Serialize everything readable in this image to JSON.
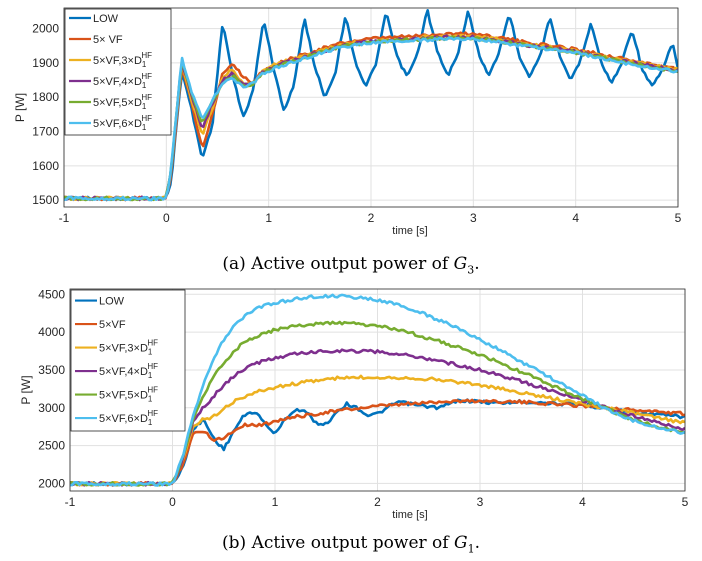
{
  "figure_captions": [
    {
      "prefix": "(a) Active output power of ",
      "math": "G",
      "sub": "3",
      "suffix": "."
    },
    {
      "prefix": "(b) Active output power of ",
      "math": "G",
      "sub": "1",
      "suffix": "."
    }
  ],
  "chart_data": [
    {
      "type": "line",
      "xlabel": "time [s]",
      "ylabel": "P [W]",
      "xlim": [
        -1,
        5
      ],
      "ylim": [
        1480,
        2060
      ],
      "xticks": [
        -1,
        0,
        1,
        2,
        3,
        4,
        5
      ],
      "yticks": [
        1500,
        1600,
        1700,
        1800,
        1900,
        2000
      ],
      "grid": true,
      "legend_position": "top-left",
      "series": [
        {
          "name": "LOW",
          "label_base": "LOW",
          "label_sup": "",
          "color": "#0072BD",
          "x": [
            -1,
            0,
            0.05,
            0.15,
            0.25,
            0.35,
            0.45,
            0.55,
            0.65,
            0.75,
            0.85,
            0.95,
            1.05,
            1.15,
            1.25,
            1.35,
            1.45,
            1.55,
            1.65,
            1.75,
            1.85,
            1.95,
            2.05,
            2.15,
            2.25,
            2.35,
            2.45,
            2.55,
            2.65,
            2.75,
            2.85,
            2.95,
            3.05,
            3.15,
            3.25,
            3.35,
            3.45,
            3.55,
            3.65,
            3.75,
            3.85,
            3.95,
            4.05,
            4.15,
            4.25,
            4.35,
            4.45,
            4.55,
            4.65,
            4.75,
            4.85,
            4.95,
            5
          ],
          "y": [
            1505,
            1505,
            1560,
            1880,
            1760,
            1620,
            1720,
            2020,
            1860,
            1740,
            1820,
            2030,
            1880,
            1760,
            1840,
            2030,
            1890,
            1800,
            1870,
            2040,
            1900,
            1830,
            1900,
            2050,
            1920,
            1860,
            1920,
            2055,
            1930,
            1860,
            1930,
            2050,
            1930,
            1860,
            1930,
            2045,
            1920,
            1860,
            1920,
            2035,
            1910,
            1850,
            1910,
            2020,
            1900,
            1840,
            1900,
            2000,
            1880,
            1830,
            1880,
            1960,
            1880
          ]
        },
        {
          "name": "5× VF",
          "label_base": "5× VF",
          "label_sup": "",
          "color": "#D95319",
          "x": [
            -1,
            0,
            0.05,
            0.15,
            0.25,
            0.35,
            0.45,
            0.55,
            0.65,
            0.75,
            0.85,
            0.95,
            1.1,
            1.3,
            1.5,
            1.75,
            2,
            2.25,
            2.5,
            2.75,
            3,
            3.25,
            3.5,
            3.75,
            4,
            4.25,
            4.5,
            4.75,
            5
          ],
          "y": [
            1505,
            1505,
            1580,
            1890,
            1780,
            1650,
            1750,
            1870,
            1900,
            1860,
            1840,
            1880,
            1900,
            1920,
            1940,
            1960,
            1970,
            1975,
            1980,
            1985,
            1985,
            1975,
            1960,
            1950,
            1940,
            1925,
            1910,
            1895,
            1880
          ]
        },
        {
          "name": "5×VF,3×D1HF",
          "label_base": "5×VF,3×D",
          "label_sup": "HF",
          "color": "#EDB120",
          "x": [
            -1,
            0,
            0.05,
            0.15,
            0.25,
            0.35,
            0.45,
            0.55,
            0.65,
            0.75,
            0.85,
            0.95,
            1.1,
            1.3,
            1.5,
            1.75,
            2,
            2.25,
            2.5,
            2.75,
            3,
            3.25,
            3.5,
            3.75,
            4,
            4.25,
            4.5,
            4.75,
            5
          ],
          "y": [
            1505,
            1505,
            1590,
            1900,
            1790,
            1690,
            1770,
            1860,
            1880,
            1840,
            1840,
            1880,
            1900,
            1915,
            1935,
            1955,
            1965,
            1970,
            1975,
            1978,
            1978,
            1968,
            1955,
            1945,
            1935,
            1920,
            1905,
            1892,
            1880
          ]
        },
        {
          "name": "5×VF,4×D1HF",
          "label_base": "5×VF,4×D",
          "label_sup": "HF",
          "color": "#7E2F8E",
          "x": [
            -1,
            0,
            0.05,
            0.15,
            0.25,
            0.35,
            0.45,
            0.55,
            0.65,
            0.75,
            0.85,
            0.95,
            1.1,
            1.3,
            1.5,
            1.75,
            2,
            2.25,
            2.5,
            2.75,
            3,
            3.25,
            3.5,
            3.75,
            4,
            4.25,
            4.5,
            4.75,
            5
          ],
          "y": [
            1505,
            1505,
            1595,
            1905,
            1800,
            1710,
            1780,
            1850,
            1870,
            1835,
            1840,
            1875,
            1895,
            1912,
            1932,
            1952,
            1962,
            1967,
            1972,
            1975,
            1975,
            1965,
            1953,
            1943,
            1933,
            1918,
            1903,
            1890,
            1878
          ]
        },
        {
          "name": "5×VF,5×D1HF",
          "label_base": "5×VF,5×D",
          "label_sup": "HF",
          "color": "#77AC30",
          "x": [
            -1,
            0,
            0.05,
            0.15,
            0.25,
            0.35,
            0.45,
            0.55,
            0.65,
            0.75,
            0.85,
            0.95,
            1.1,
            1.3,
            1.5,
            1.75,
            2,
            2.25,
            2.5,
            2.75,
            3,
            3.25,
            3.5,
            3.75,
            4,
            4.25,
            4.5,
            4.75,
            5
          ],
          "y": [
            1505,
            1505,
            1598,
            1910,
            1808,
            1722,
            1785,
            1845,
            1862,
            1832,
            1840,
            1872,
            1892,
            1910,
            1930,
            1950,
            1960,
            1965,
            1970,
            1972,
            1972,
            1963,
            1951,
            1941,
            1931,
            1916,
            1901,
            1888,
            1876
          ]
        },
        {
          "name": "5×VF,6×D1HF",
          "label_base": "5×VF,6×D",
          "label_sup": "HF",
          "color": "#4DBEEE",
          "x": [
            -1,
            0,
            0.05,
            0.15,
            0.25,
            0.35,
            0.45,
            0.55,
            0.65,
            0.75,
            0.85,
            0.95,
            1.1,
            1.3,
            1.5,
            1.75,
            2,
            2.25,
            2.5,
            2.75,
            3,
            3.25,
            3.5,
            3.75,
            4,
            4.25,
            4.5,
            4.75,
            5
          ],
          "y": [
            1505,
            1505,
            1600,
            1915,
            1815,
            1735,
            1790,
            1842,
            1855,
            1830,
            1840,
            1870,
            1890,
            1908,
            1928,
            1948,
            1958,
            1963,
            1967,
            1970,
            1970,
            1960,
            1949,
            1939,
            1929,
            1914,
            1899,
            1886,
            1874
          ]
        }
      ]
    },
    {
      "type": "line",
      "xlabel": "time [s]",
      "ylabel": "P [W]",
      "xlim": [
        -1,
        5
      ],
      "ylim": [
        1900,
        4570
      ],
      "xticks": [
        -1,
        0,
        1,
        2,
        3,
        4,
        5
      ],
      "yticks": [
        2000,
        2500,
        3000,
        3500,
        4000,
        4500
      ],
      "grid": true,
      "legend_position": "top-left",
      "series": [
        {
          "name": "LOW",
          "label_base": "LOW",
          "label_sup": "",
          "color": "#0072BD",
          "x": [
            -1,
            0,
            0.1,
            0.2,
            0.3,
            0.4,
            0.5,
            0.6,
            0.7,
            0.8,
            0.9,
            1,
            1.1,
            1.2,
            1.3,
            1.4,
            1.5,
            1.6,
            1.7,
            1.8,
            1.9,
            2,
            2.2,
            2.4,
            2.6,
            2.8,
            3,
            3.2,
            3.4,
            3.6,
            3.8,
            4,
            4.2,
            4.4,
            4.6,
            4.8,
            5
          ],
          "y": [
            1995,
            1995,
            2200,
            2700,
            2850,
            2600,
            2450,
            2700,
            2900,
            2950,
            2800,
            2650,
            2850,
            2980,
            2950,
            2800,
            2780,
            2950,
            3050,
            3000,
            2900,
            2920,
            3080,
            3030,
            3000,
            3100,
            3080,
            3060,
            3080,
            3070,
            3050,
            3040,
            3000,
            2960,
            2930,
            2900,
            2880
          ]
        },
        {
          "name": "5×VF",
          "label_base": "5×VF",
          "label_sup": "",
          "color": "#D95319",
          "x": [
            -1,
            0,
            0.1,
            0.2,
            0.3,
            0.4,
            0.5,
            0.6,
            0.7,
            0.8,
            0.9,
            1,
            1.2,
            1.4,
            1.6,
            1.8,
            2,
            2.2,
            2.4,
            2.6,
            2.8,
            3,
            3.2,
            3.4,
            3.6,
            3.8,
            4,
            4.2,
            4.4,
            4.6,
            4.8,
            5
          ],
          "y": [
            1995,
            1995,
            2250,
            2650,
            2700,
            2580,
            2600,
            2700,
            2780,
            2770,
            2780,
            2830,
            2880,
            2920,
            2960,
            2990,
            3020,
            3040,
            3060,
            3080,
            3090,
            3090,
            3085,
            3075,
            3060,
            3045,
            3030,
            3010,
            2980,
            2960,
            2940,
            2920
          ]
        },
        {
          "name": "5×VF,3×D1HF",
          "label_base": "5×VF,3×D",
          "label_sup": "HF",
          "color": "#EDB120",
          "x": [
            -1,
            0,
            0.1,
            0.2,
            0.3,
            0.4,
            0.5,
            0.6,
            0.7,
            0.8,
            1,
            1.2,
            1.4,
            1.6,
            1.8,
            2,
            2.2,
            2.4,
            2.6,
            2.8,
            3,
            3.2,
            3.4,
            3.6,
            3.8,
            4,
            4.2,
            4.4,
            4.6,
            4.8,
            5
          ],
          "y": [
            1995,
            1995,
            2300,
            2750,
            2850,
            2880,
            3000,
            3080,
            3150,
            3200,
            3270,
            3320,
            3360,
            3390,
            3400,
            3405,
            3400,
            3390,
            3370,
            3340,
            3300,
            3250,
            3200,
            3150,
            3100,
            3050,
            3010,
            2960,
            2900,
            2850,
            2800
          ]
        },
        {
          "name": "5×VF,4×D1HF",
          "label_base": "5×VF,4×D",
          "label_sup": "HF",
          "color": "#7E2F8E",
          "x": [
            -1,
            0,
            0.1,
            0.2,
            0.3,
            0.4,
            0.5,
            0.6,
            0.7,
            0.8,
            1,
            1.2,
            1.4,
            1.6,
            1.8,
            2,
            2.2,
            2.4,
            2.6,
            2.8,
            3,
            3.2,
            3.4,
            3.6,
            3.8,
            4,
            4.2,
            4.4,
            4.6,
            4.8,
            5
          ],
          "y": [
            1995,
            1995,
            2320,
            2800,
            3000,
            3150,
            3300,
            3420,
            3510,
            3580,
            3660,
            3710,
            3740,
            3755,
            3750,
            3740,
            3710,
            3670,
            3620,
            3560,
            3500,
            3430,
            3350,
            3270,
            3180,
            3100,
            3020,
            2930,
            2850,
            2780,
            2720
          ]
        },
        {
          "name": "5×VF,5×D1HF",
          "label_base": "5×VF,5×D",
          "label_sup": "HF",
          "color": "#77AC30",
          "x": [
            -1,
            0,
            0.1,
            0.2,
            0.3,
            0.4,
            0.5,
            0.6,
            0.7,
            0.8,
            1,
            1.2,
            1.4,
            1.6,
            1.8,
            2,
            2.2,
            2.4,
            2.6,
            2.8,
            3,
            3.2,
            3.4,
            3.6,
            3.8,
            4,
            4.2,
            4.4,
            4.6,
            4.8,
            5
          ],
          "y": [
            1995,
            1995,
            2340,
            2850,
            3150,
            3400,
            3600,
            3750,
            3860,
            3940,
            4030,
            4080,
            4110,
            4120,
            4110,
            4080,
            4030,
            3960,
            3880,
            3790,
            3700,
            3590,
            3470,
            3360,
            3240,
            3120,
            3010,
            2890,
            2800,
            2730,
            2680
          ]
        },
        {
          "name": "5×VF,6×D1HF",
          "label_base": "5×VF,6×D",
          "label_sup": "HF",
          "color": "#4DBEEE",
          "x": [
            -1,
            0,
            0.1,
            0.2,
            0.3,
            0.4,
            0.5,
            0.6,
            0.7,
            0.8,
            1,
            1.2,
            1.4,
            1.6,
            1.8,
            2,
            2.2,
            2.4,
            2.6,
            2.8,
            3,
            3.2,
            3.4,
            3.6,
            3.8,
            4,
            4.2,
            4.4,
            4.6,
            4.8,
            5
          ],
          "y": [
            1995,
            1995,
            2360,
            2900,
            3300,
            3650,
            3900,
            4080,
            4210,
            4300,
            4390,
            4440,
            4470,
            4475,
            4460,
            4420,
            4360,
            4270,
            4160,
            4040,
            3900,
            3760,
            3610,
            3460,
            3310,
            3160,
            3010,
            2880,
            2790,
            2720,
            2660
          ]
        }
      ]
    }
  ]
}
